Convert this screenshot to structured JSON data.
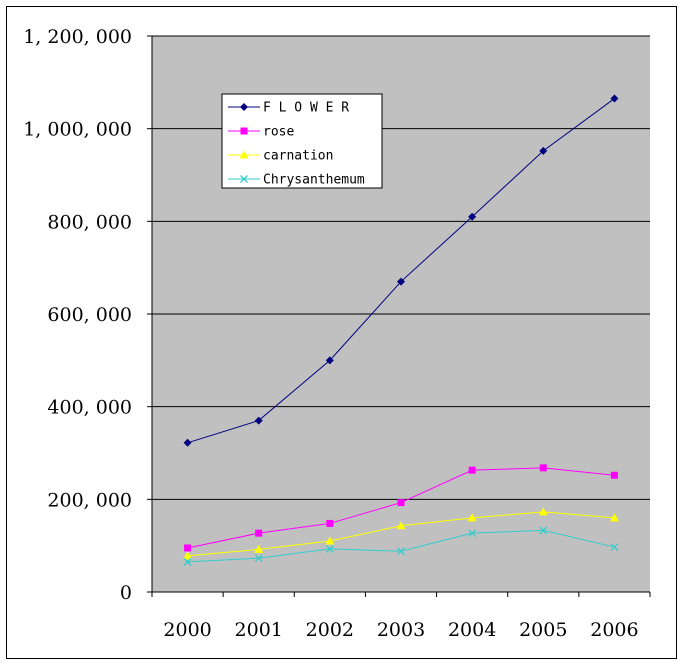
{
  "chart_data": {
    "type": "line",
    "title": "",
    "xlabel": "",
    "ylabel": "",
    "categories": [
      "2000",
      "2001",
      "2002",
      "2003",
      "2004",
      "2005",
      "2006"
    ],
    "ylim": [
      0,
      1200000
    ],
    "y_ticks": [
      0,
      200000,
      400000,
      600000,
      800000,
      1000000,
      1200000
    ],
    "y_tick_labels": [
      "0",
      "200, 000",
      "400, 000",
      "600, 000",
      "800, 000",
      "1, 000, 000",
      "1, 200, 000"
    ],
    "grid": true,
    "plot_background": "#c0c0c0",
    "legend_position": "top-left",
    "series": [
      {
        "name": "F L O W E R",
        "color": "#000080",
        "marker": "diamond",
        "values": [
          322000,
          370000,
          500000,
          670000,
          810000,
          952000,
          1065000
        ]
      },
      {
        "name": "rose",
        "color": "#ff00ff",
        "marker": "square",
        "values": [
          95000,
          127000,
          148000,
          193000,
          263000,
          268000,
          252000
        ]
      },
      {
        "name": "carnation",
        "color": "#ffff00",
        "marker": "triangle",
        "values": [
          78000,
          92000,
          110000,
          143000,
          160000,
          173000,
          160000
        ]
      },
      {
        "name": "Chrysanthemum",
        "color": "#33cccc",
        "marker": "x",
        "values": [
          65000,
          73000,
          93000,
          88000,
          127000,
          133000,
          97000
        ]
      }
    ]
  }
}
